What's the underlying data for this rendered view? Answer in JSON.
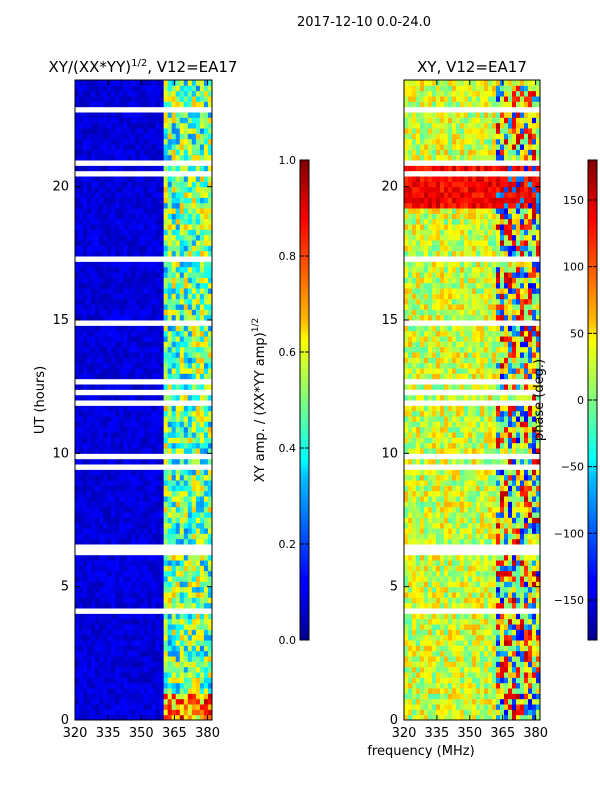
{
  "suptitle": "2017-12-10 0.0-24.0",
  "chart_data": [
    {
      "type": "heatmap",
      "title": "XY/(XX*YY)",
      "title_exponent": "1/2",
      "title_suffix": ", V12=EA17",
      "xlabel": "",
      "ylabel": "UT (hours)",
      "xlim": [
        320,
        382
      ],
      "ylim": [
        0,
        24
      ],
      "xticks": [
        320,
        335,
        350,
        365,
        380
      ],
      "yticks": [
        0,
        5,
        10,
        15,
        20
      ],
      "quantity": "normalized XY amplitude",
      "low_value_region_mhz": [
        320,
        360
      ],
      "high_value_region_mhz": [
        360,
        382
      ],
      "colorbar": {
        "label": "XY amp. / (XX*YY amp)",
        "label_exponent": "1/2",
        "range": [
          0.0,
          1.0
        ],
        "ticks": [
          "0.0",
          "0.2",
          "0.4",
          "0.6",
          "0.8",
          "1.0"
        ],
        "colormap": "jet"
      }
    },
    {
      "type": "heatmap",
      "title": "XY, V12=EA17",
      "xlabel": "frequency (MHz)",
      "ylabel": "",
      "xlim": [
        320,
        382
      ],
      "ylim": [
        0,
        24
      ],
      "xticks": [
        320,
        335,
        350,
        365,
        380
      ],
      "yticks": [
        0,
        5,
        10,
        15,
        20
      ],
      "quantity": "XY phase",
      "colorbar": {
        "label": "phase (deg.)",
        "range": [
          -180,
          180
        ],
        "ticks": [
          "−150",
          "−100",
          "−50",
          "0",
          "50",
          "100",
          "150"
        ],
        "colormap": "jet"
      }
    }
  ]
}
